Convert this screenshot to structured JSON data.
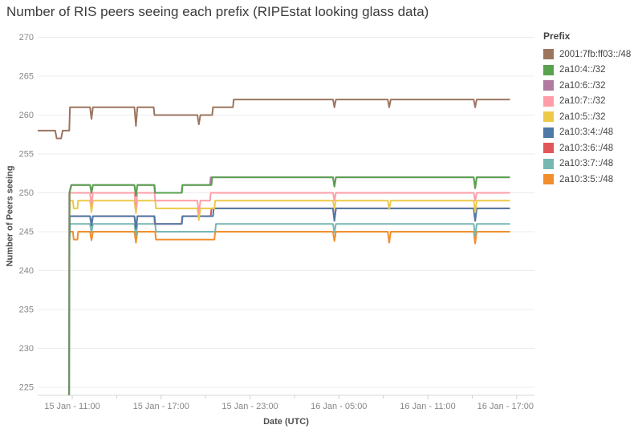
{
  "title": "Number of RIS peers seeing each prefix (RIPEstat looking glass data)",
  "legend": {
    "title": "Prefix",
    "items": [
      {
        "label": "2001:7fb:ff03::/48",
        "color": "#9C755F"
      },
      {
        "label": "2a10:4::/32",
        "color": "#59A14F"
      },
      {
        "label": "2a10:6::/32",
        "color": "#B07AA1"
      },
      {
        "label": "2a10:7::/32",
        "color": "#FF9DA7"
      },
      {
        "label": "2a10:5::/32",
        "color": "#EDC948"
      },
      {
        "label": "2a10:3:4::/48",
        "color": "#4E79A7"
      },
      {
        "label": "2a10:3:6::/48",
        "color": "#E15759"
      },
      {
        "label": "2a10:3:7::/48",
        "color": "#76B7B2"
      },
      {
        "label": "2a10:3:5::/48",
        "color": "#F28E2B"
      }
    ]
  },
  "colors": {
    "grid": "#ececec",
    "axis_line": "#d7d7d7",
    "tick": "#cfcfcf",
    "tick_label": "#878787",
    "axis_title": "#4e4e4e",
    "title": "#3b3b3b"
  },
  "chart_data": {
    "type": "line",
    "title": "Number of RIS peers seeing each prefix (RIPEstat looking glass data)",
    "xlabel": "Date (UTC)",
    "ylabel": "Number of Peers seeing",
    "x_unit": "hours since 15 Jan 00:00 UTC",
    "xlim": [
      8.67,
      42.2
    ],
    "ylim": [
      223.97,
      270.3
    ],
    "grid": "horizontal",
    "legend_position": "right",
    "yticks": [
      225,
      230,
      235,
      240,
      245,
      250,
      255,
      260,
      265,
      270
    ],
    "xticks": [
      {
        "t": 11,
        "label": "15 Jan - 11:00"
      },
      {
        "t": 17,
        "label": "15 Jan - 17:00"
      },
      {
        "t": 23,
        "label": "15 Jan - 23:00"
      },
      {
        "t": 29,
        "label": "16 Jan - 05:00"
      },
      {
        "t": 35,
        "label": "16 Jan - 11:00"
      },
      {
        "t": 41,
        "label": "16 Jan - 17:00"
      }
    ],
    "minor_xticks": [
      14,
      20,
      26,
      32,
      38
    ],
    "series": [
      {
        "name": "2001:7fb:ff03::/48",
        "color": "#9C755F",
        "points": [
          [
            8.67,
            258
          ],
          [
            9.85,
            258
          ],
          [
            9.95,
            257
          ],
          [
            10.25,
            257
          ],
          [
            10.35,
            258
          ],
          [
            10.8,
            258
          ],
          [
            10.85,
            261
          ],
          [
            12.2,
            261
          ],
          [
            12.3,
            259.5
          ],
          [
            12.4,
            261
          ],
          [
            15.2,
            261
          ],
          [
            15.3,
            258.6
          ],
          [
            15.4,
            261
          ],
          [
            16.5,
            261
          ],
          [
            16.55,
            260
          ],
          [
            19.45,
            260
          ],
          [
            19.55,
            258.8
          ],
          [
            19.65,
            260
          ],
          [
            20.45,
            260
          ],
          [
            20.5,
            261
          ],
          [
            21.85,
            261
          ],
          [
            21.9,
            262
          ],
          [
            28.6,
            262
          ],
          [
            28.7,
            261
          ],
          [
            28.8,
            262
          ],
          [
            32.3,
            262
          ],
          [
            32.4,
            261
          ],
          [
            32.5,
            262
          ],
          [
            38.1,
            262
          ],
          [
            38.2,
            261
          ],
          [
            38.3,
            262
          ],
          [
            40.55,
            262
          ]
        ]
      },
      {
        "name": "2a10:4::/32",
        "color": "#59A14F",
        "points": [
          [
            10.8,
            224
          ],
          [
            10.82,
            250
          ],
          [
            10.95,
            251
          ],
          [
            12.2,
            251
          ],
          [
            12.3,
            250
          ],
          [
            12.4,
            251
          ],
          [
            15.2,
            251
          ],
          [
            15.3,
            249.6
          ],
          [
            15.4,
            251
          ],
          [
            16.55,
            251
          ],
          [
            16.6,
            250
          ],
          [
            18.4,
            250
          ],
          [
            18.45,
            251
          ],
          [
            20.4,
            251
          ],
          [
            20.45,
            252
          ],
          [
            28.6,
            252
          ],
          [
            28.7,
            250.8
          ],
          [
            28.8,
            252
          ],
          [
            38.1,
            252
          ],
          [
            38.2,
            250.6
          ],
          [
            38.3,
            252
          ],
          [
            40.55,
            252
          ]
        ]
      },
      {
        "name": "2a10:6::/32",
        "color": "#B07AA1",
        "points": [
          [
            10.78,
            224
          ],
          [
            10.8,
            250
          ],
          [
            10.93,
            251
          ],
          [
            12.2,
            251
          ],
          [
            12.3,
            250
          ],
          [
            12.4,
            251
          ],
          [
            15.2,
            251
          ],
          [
            15.3,
            249.6
          ],
          [
            15.4,
            251
          ],
          [
            16.53,
            251
          ],
          [
            16.58,
            250
          ],
          [
            18.38,
            250
          ],
          [
            18.43,
            251
          ],
          [
            20.3,
            251
          ],
          [
            20.35,
            252
          ],
          [
            28.6,
            252
          ],
          [
            28.7,
            250.8
          ],
          [
            28.8,
            252
          ],
          [
            38.1,
            252
          ],
          [
            38.2,
            250.6
          ],
          [
            38.3,
            252
          ],
          [
            40.55,
            252
          ]
        ]
      },
      {
        "name": "2a10:7::/32",
        "color": "#FF9DA7",
        "points": [
          [
            10.82,
            248
          ],
          [
            10.84,
            250
          ],
          [
            12.2,
            250
          ],
          [
            12.3,
            248.3
          ],
          [
            12.4,
            250
          ],
          [
            15.2,
            250
          ],
          [
            15.3,
            248
          ],
          [
            15.4,
            250
          ],
          [
            16.55,
            250
          ],
          [
            16.6,
            249
          ],
          [
            19.45,
            249
          ],
          [
            19.55,
            247.3
          ],
          [
            19.65,
            249
          ],
          [
            20.3,
            249
          ],
          [
            20.35,
            250
          ],
          [
            28.6,
            250
          ],
          [
            28.7,
            249
          ],
          [
            28.8,
            250
          ],
          [
            38.1,
            250
          ],
          [
            38.2,
            249
          ],
          [
            38.3,
            250
          ],
          [
            40.55,
            250
          ]
        ]
      },
      {
        "name": "2a10:5::/32",
        "color": "#EDC948",
        "points": [
          [
            10.83,
            247.5
          ],
          [
            10.85,
            249
          ],
          [
            11.05,
            249
          ],
          [
            11.1,
            248
          ],
          [
            11.35,
            248
          ],
          [
            11.4,
            249
          ],
          [
            12.2,
            249
          ],
          [
            12.3,
            247.5
          ],
          [
            12.4,
            249
          ],
          [
            15.2,
            249
          ],
          [
            15.3,
            247.4
          ],
          [
            15.4,
            249
          ],
          [
            16.6,
            249
          ],
          [
            16.65,
            248
          ],
          [
            19.45,
            248
          ],
          [
            19.55,
            246.5
          ],
          [
            19.65,
            248
          ],
          [
            20.6,
            248
          ],
          [
            20.65,
            249
          ],
          [
            28.6,
            249
          ],
          [
            28.7,
            248
          ],
          [
            28.8,
            249
          ],
          [
            32.3,
            249
          ],
          [
            32.4,
            247.9
          ],
          [
            32.5,
            249
          ],
          [
            38.1,
            249
          ],
          [
            38.2,
            247.5
          ],
          [
            38.3,
            249
          ],
          [
            40.55,
            249
          ]
        ]
      },
      {
        "name": "2a10:3:4::/48",
        "color": "#4E79A7",
        "points": [
          [
            10.82,
            244
          ],
          [
            10.84,
            247
          ],
          [
            12.2,
            247
          ],
          [
            12.3,
            245.8
          ],
          [
            12.4,
            247
          ],
          [
            15.2,
            247
          ],
          [
            15.3,
            245.4
          ],
          [
            15.4,
            247
          ],
          [
            16.55,
            247
          ],
          [
            16.6,
            246
          ],
          [
            18.4,
            246
          ],
          [
            18.45,
            247
          ],
          [
            20.5,
            247
          ],
          [
            20.55,
            248
          ],
          [
            28.6,
            248
          ],
          [
            28.7,
            246.4
          ],
          [
            28.8,
            248
          ],
          [
            38.1,
            248
          ],
          [
            38.2,
            246.4
          ],
          [
            38.3,
            248
          ],
          [
            40.55,
            248
          ]
        ]
      },
      {
        "name": "2a10:3:6::/48",
        "color": "#E15759",
        "points": [
          [
            10.81,
            244
          ],
          [
            10.83,
            247
          ],
          [
            12.2,
            247
          ],
          [
            12.3,
            245.8
          ],
          [
            12.4,
            247
          ],
          [
            15.2,
            247
          ],
          [
            15.3,
            245.4
          ],
          [
            15.4,
            247
          ],
          [
            16.53,
            247
          ],
          [
            16.58,
            246
          ],
          [
            18.38,
            246
          ],
          [
            18.43,
            247
          ],
          [
            20.35,
            247
          ],
          [
            20.4,
            248
          ],
          [
            28.6,
            248
          ],
          [
            28.7,
            246.4
          ],
          [
            28.8,
            248
          ],
          [
            38.1,
            248
          ],
          [
            38.2,
            246.4
          ],
          [
            38.3,
            248
          ],
          [
            40.55,
            248
          ]
        ]
      },
      {
        "name": "2a10:3:7::/48",
        "color": "#76B7B2",
        "points": [
          [
            10.83,
            244.5
          ],
          [
            10.85,
            246
          ],
          [
            12.2,
            246
          ],
          [
            12.3,
            244.9
          ],
          [
            12.4,
            246
          ],
          [
            15.2,
            246
          ],
          [
            15.3,
            244.5
          ],
          [
            15.4,
            246
          ],
          [
            16.6,
            246
          ],
          [
            16.65,
            245
          ],
          [
            20.65,
            245
          ],
          [
            20.7,
            246
          ],
          [
            28.6,
            246
          ],
          [
            28.7,
            244.9
          ],
          [
            28.8,
            246
          ],
          [
            38.1,
            246
          ],
          [
            38.2,
            244.4
          ],
          [
            38.3,
            246
          ],
          [
            40.55,
            246
          ]
        ]
      },
      {
        "name": "2a10:3:5::/48",
        "color": "#F28E2B",
        "points": [
          [
            10.8,
            243.5
          ],
          [
            10.82,
            245
          ],
          [
            11.05,
            245
          ],
          [
            11.1,
            244
          ],
          [
            11.35,
            244
          ],
          [
            11.4,
            245
          ],
          [
            12.2,
            245
          ],
          [
            12.3,
            243.9
          ],
          [
            12.4,
            245
          ],
          [
            15.2,
            245
          ],
          [
            15.3,
            243.6
          ],
          [
            15.4,
            245
          ],
          [
            16.6,
            245
          ],
          [
            16.65,
            244
          ],
          [
            20.6,
            244
          ],
          [
            20.65,
            245
          ],
          [
            28.6,
            245
          ],
          [
            28.7,
            243.8
          ],
          [
            28.8,
            245
          ],
          [
            32.3,
            245
          ],
          [
            32.4,
            243.6
          ],
          [
            32.5,
            245
          ],
          [
            38.1,
            245
          ],
          [
            38.2,
            243.5
          ],
          [
            38.3,
            245
          ],
          [
            40.55,
            245
          ]
        ]
      }
    ]
  }
}
